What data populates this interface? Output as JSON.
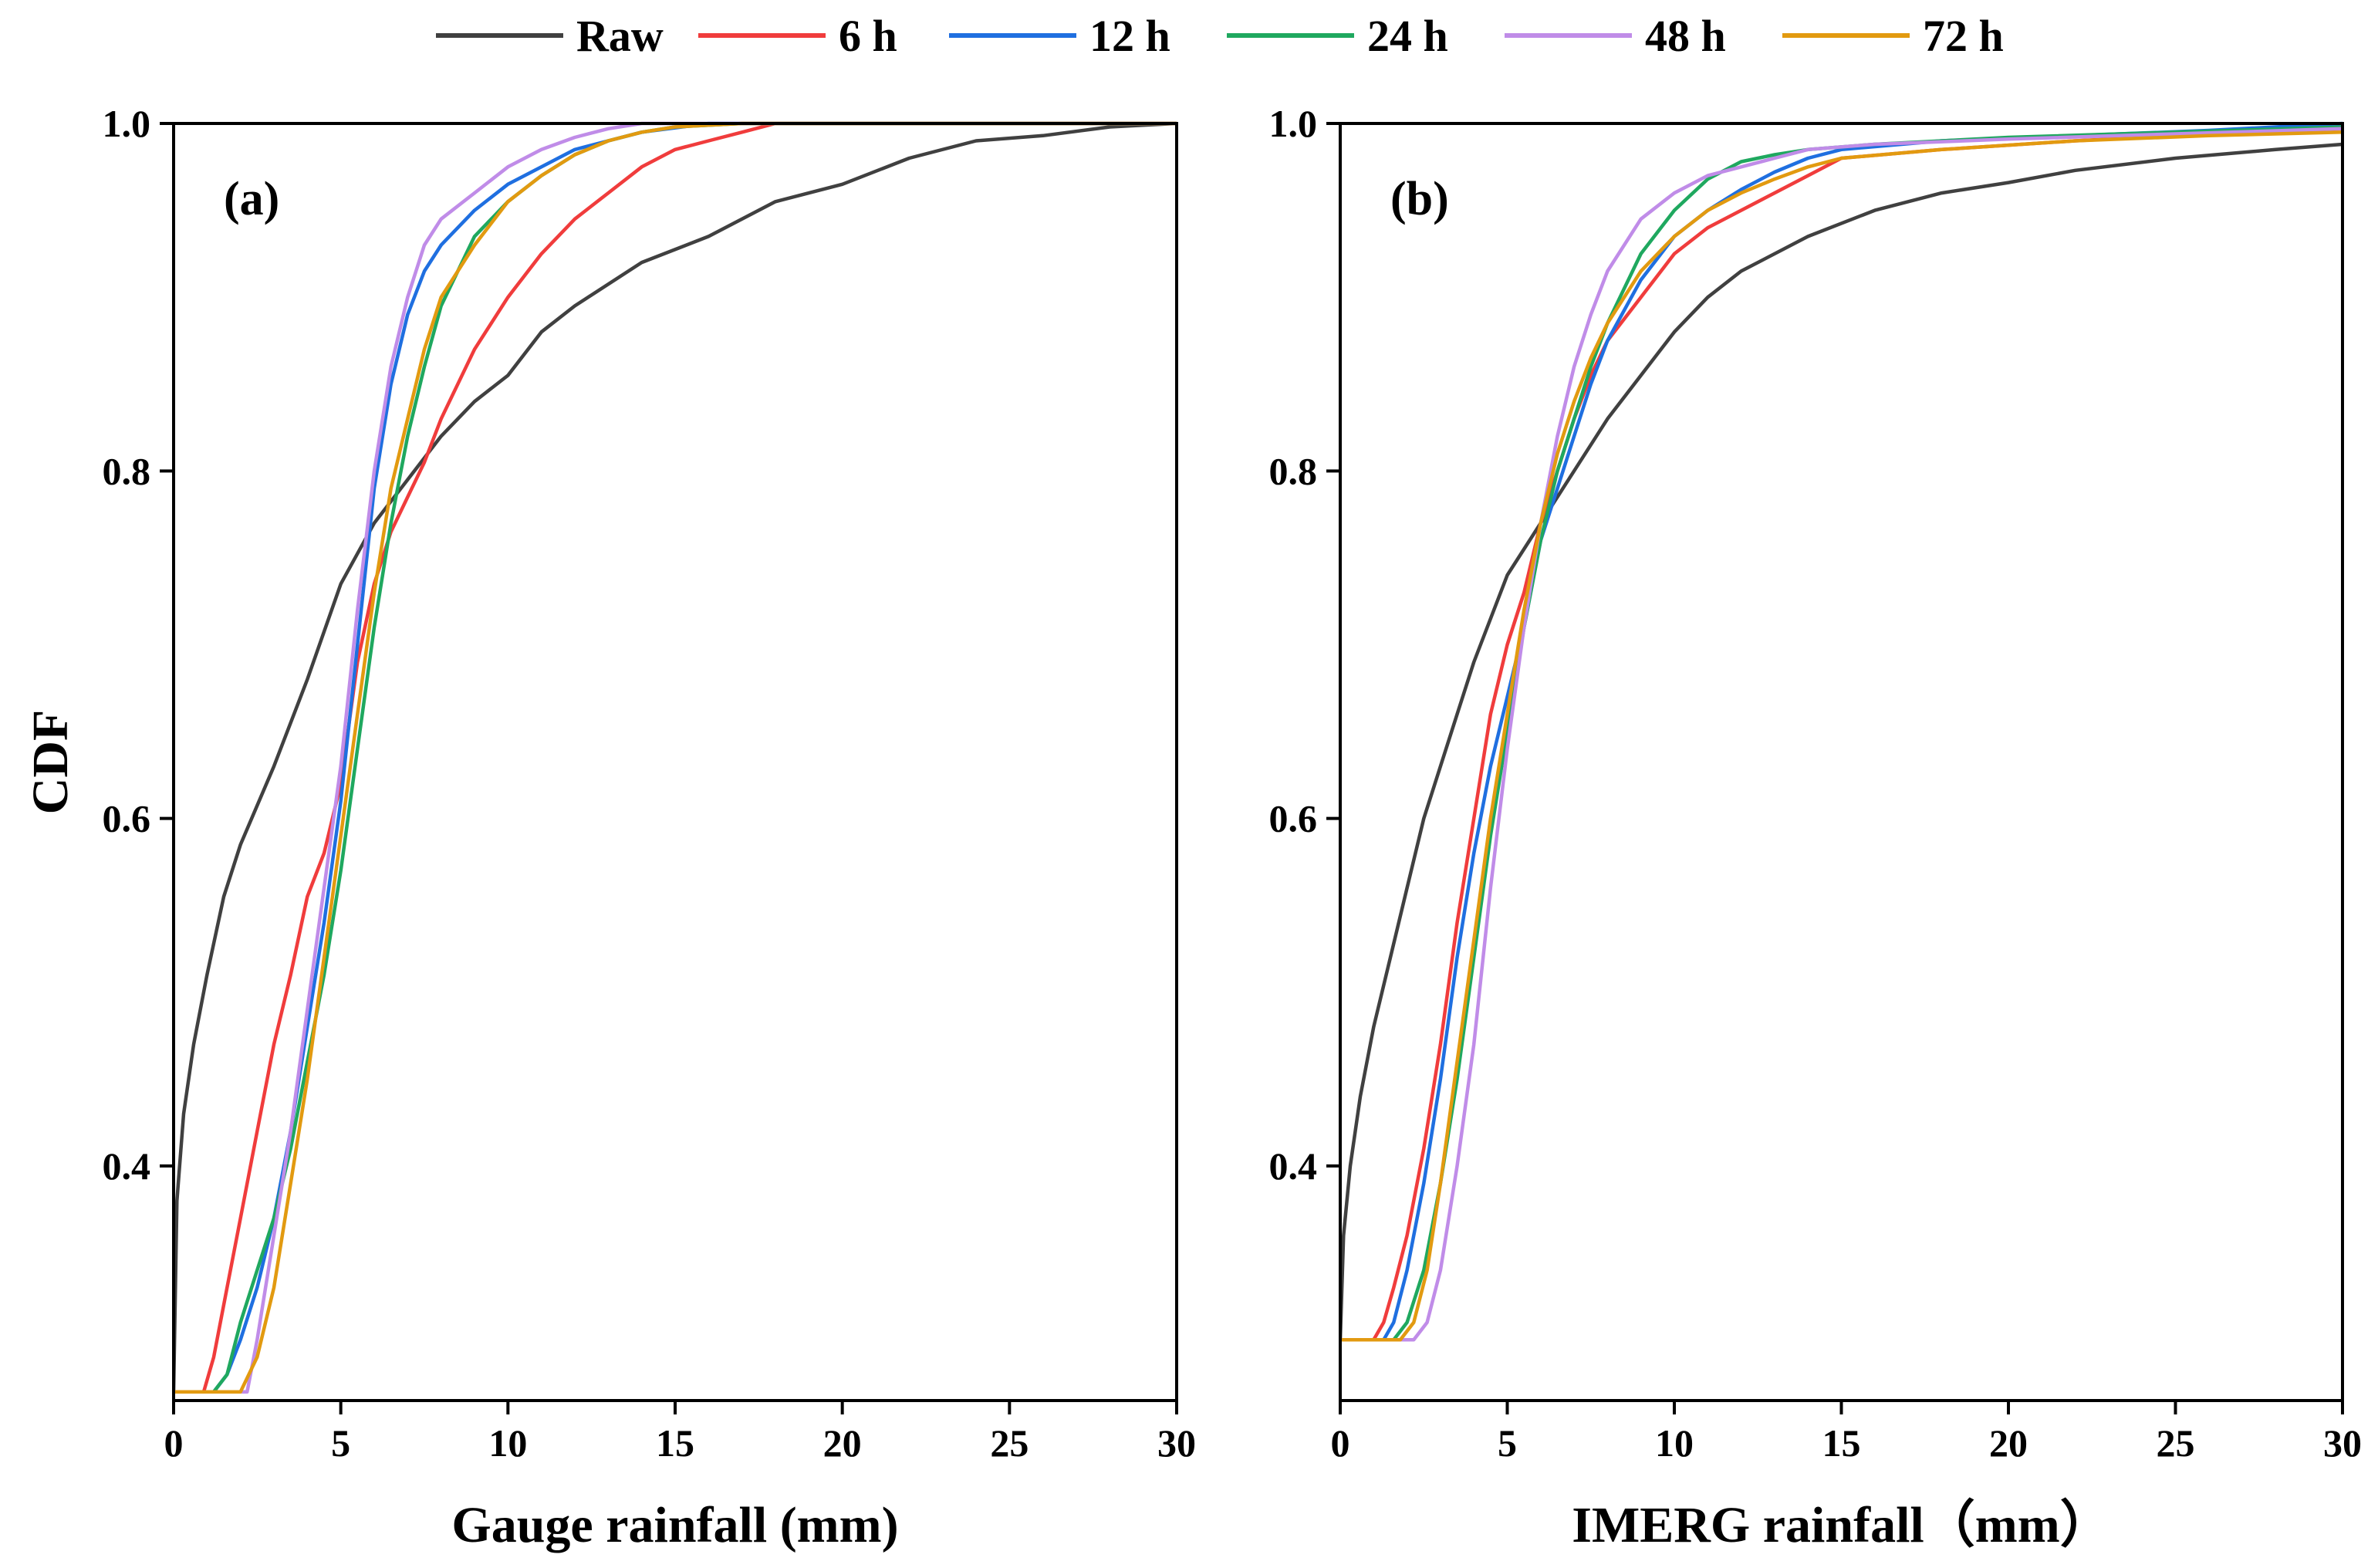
{
  "legend": {
    "items": [
      {
        "key": "raw",
        "label": "Raw",
        "color": "#404040"
      },
      {
        "key": "h6",
        "label": "6 h",
        "color": "#f03c3c"
      },
      {
        "key": "h12",
        "label": "12 h",
        "color": "#1f6fe0"
      },
      {
        "key": "h24",
        "label": "24 h",
        "color": "#1fa85f"
      },
      {
        "key": "h48",
        "label": "48 h",
        "color": "#c08ce8"
      },
      {
        "key": "h72",
        "label": "72 h",
        "color": "#e29a10"
      }
    ]
  },
  "chart_data": [
    {
      "type": "line",
      "panel_label": "(a)",
      "title": "",
      "xlabel": "Gauge rainfall (mm)",
      "ylabel": "CDF",
      "xlim": [
        0,
        30
      ],
      "ylim": [
        0.265,
        1.0
      ],
      "xticks": [
        0,
        5,
        10,
        15,
        20,
        25,
        30
      ],
      "xtick_labels": [
        "0",
        "5",
        "10",
        "15",
        "20",
        "25",
        "30"
      ],
      "yticks": [
        0.4,
        0.6,
        0.8,
        1.0
      ],
      "ytick_labels": [
        "0.4",
        "0.6",
        "0.8",
        "1.0"
      ],
      "series": [
        {
          "name": "Raw",
          "x": [
            0,
            0.1,
            0.3,
            0.6,
            1.0,
            1.5,
            2.0,
            3.0,
            4.0,
            5.0,
            6.0,
            7.0,
            8.0,
            9.0,
            10.0,
            11.0,
            12.0,
            14.0,
            16.0,
            18.0,
            20.0,
            22.0,
            24.0,
            26.0,
            28.0,
            30.0
          ],
          "y": [
            0.27,
            0.38,
            0.43,
            0.47,
            0.51,
            0.555,
            0.585,
            0.63,
            0.68,
            0.735,
            0.77,
            0.795,
            0.82,
            0.84,
            0.855,
            0.88,
            0.895,
            0.92,
            0.935,
            0.955,
            0.965,
            0.98,
            0.99,
            0.993,
            0.998,
            1.0
          ]
        },
        {
          "name": "6 h",
          "x": [
            0,
            0.9,
            1.2,
            1.6,
            2.0,
            2.5,
            3.0,
            3.5,
            4.0,
            4.5,
            5.0,
            5.5,
            6.0,
            6.5,
            7.0,
            7.5,
            8.0,
            8.5,
            9.0,
            10.0,
            11.0,
            12.0,
            13.0,
            14.0,
            15.0,
            16.0,
            17.0,
            18.0,
            30.0
          ],
          "y": [
            0.27,
            0.27,
            0.29,
            0.33,
            0.37,
            0.42,
            0.47,
            0.51,
            0.555,
            0.58,
            0.62,
            0.69,
            0.735,
            0.765,
            0.785,
            0.805,
            0.83,
            0.85,
            0.87,
            0.9,
            0.925,
            0.945,
            0.96,
            0.975,
            0.985,
            0.99,
            0.995,
            1.0,
            1.0
          ]
        },
        {
          "name": "12 h",
          "x": [
            0,
            1.2,
            1.6,
            2.0,
            2.5,
            3.0,
            3.5,
            4.0,
            4.5,
            5.0,
            5.5,
            6.0,
            6.5,
            7.0,
            7.5,
            8.0,
            9.0,
            10.0,
            11.0,
            12.0,
            13.0,
            14.0,
            16.0,
            30.0
          ],
          "y": [
            0.27,
            0.27,
            0.28,
            0.3,
            0.33,
            0.37,
            0.42,
            0.48,
            0.54,
            0.61,
            0.7,
            0.79,
            0.85,
            0.89,
            0.915,
            0.93,
            0.95,
            0.965,
            0.975,
            0.985,
            0.99,
            0.995,
            1.0,
            1.0
          ]
        },
        {
          "name": "24 h",
          "x": [
            0,
            1.2,
            1.6,
            2.0,
            2.5,
            3.0,
            3.5,
            4.0,
            4.5,
            5.0,
            5.5,
            6.0,
            6.5,
            7.0,
            7.5,
            8.0,
            9.0,
            10.0,
            11.0,
            12.0,
            13.0,
            14.0,
            15.0,
            17.0,
            30.0
          ],
          "y": [
            0.27,
            0.27,
            0.28,
            0.31,
            0.34,
            0.37,
            0.41,
            0.46,
            0.51,
            0.57,
            0.64,
            0.71,
            0.77,
            0.82,
            0.86,
            0.895,
            0.935,
            0.955,
            0.97,
            0.982,
            0.99,
            0.995,
            0.998,
            1.0,
            1.0
          ]
        },
        {
          "name": "48 h",
          "x": [
            0,
            2.2,
            2.5,
            3.0,
            3.5,
            4.0,
            4.5,
            5.0,
            5.5,
            6.0,
            6.5,
            7.0,
            7.5,
            8.0,
            9.0,
            10.0,
            11.0,
            12.0,
            13.0,
            14.0,
            30.0
          ],
          "y": [
            0.27,
            0.27,
            0.3,
            0.36,
            0.42,
            0.49,
            0.56,
            0.63,
            0.72,
            0.8,
            0.86,
            0.9,
            0.93,
            0.945,
            0.96,
            0.975,
            0.985,
            0.992,
            0.997,
            1.0,
            1.0
          ]
        },
        {
          "name": "72 h",
          "x": [
            0,
            2.0,
            2.5,
            3.0,
            3.5,
            4.0,
            4.5,
            5.0,
            5.5,
            6.0,
            6.5,
            7.0,
            7.5,
            8.0,
            9.0,
            10.0,
            11.0,
            12.0,
            13.0,
            14.0,
            15.0,
            17.0,
            30.0
          ],
          "y": [
            0.27,
            0.27,
            0.29,
            0.33,
            0.39,
            0.45,
            0.52,
            0.59,
            0.66,
            0.73,
            0.79,
            0.83,
            0.87,
            0.9,
            0.93,
            0.955,
            0.97,
            0.982,
            0.99,
            0.995,
            0.998,
            1.0,
            1.0
          ]
        }
      ]
    },
    {
      "type": "line",
      "panel_label": "(b)",
      "title": "",
      "xlabel": "IMERG rainfall（mm）",
      "ylabel": "",
      "xlim": [
        0,
        30
      ],
      "ylim": [
        0.265,
        1.0
      ],
      "xticks": [
        0,
        5,
        10,
        15,
        20,
        25,
        30
      ],
      "xtick_labels": [
        "0",
        "5",
        "10",
        "15",
        "20",
        "25",
        "30"
      ],
      "yticks": [
        0.4,
        0.6,
        0.8,
        1.0
      ],
      "ytick_labels": [
        "0.4",
        "0.6",
        "0.8",
        "1.0"
      ],
      "series": [
        {
          "name": "Raw",
          "x": [
            0,
            0.1,
            0.3,
            0.6,
            1.0,
            1.5,
            2.0,
            2.5,
            3.0,
            3.5,
            4.0,
            5.0,
            6.0,
            7.0,
            8.0,
            9.0,
            10.0,
            11.0,
            12.0,
            14.0,
            16.0,
            18.0,
            20.0,
            22.0,
            25.0,
            28.0,
            30.0
          ],
          "y": [
            0.3,
            0.36,
            0.4,
            0.44,
            0.48,
            0.52,
            0.56,
            0.6,
            0.63,
            0.66,
            0.69,
            0.74,
            0.77,
            0.8,
            0.83,
            0.855,
            0.88,
            0.9,
            0.915,
            0.935,
            0.95,
            0.96,
            0.966,
            0.973,
            0.98,
            0.985,
            0.988
          ]
        },
        {
          "name": "6 h",
          "x": [
            0,
            1.0,
            1.3,
            1.6,
            2.0,
            2.5,
            3.0,
            3.5,
            4.0,
            4.5,
            5.0,
            5.5,
            6.0,
            6.5,
            7.0,
            7.5,
            8.0,
            9.0,
            10.0,
            11.0,
            12.0,
            13.0,
            14.0,
            15.0,
            18.0,
            22.0,
            25.0,
            30.0
          ],
          "y": [
            0.3,
            0.3,
            0.31,
            0.33,
            0.36,
            0.41,
            0.47,
            0.54,
            0.6,
            0.66,
            0.7,
            0.73,
            0.77,
            0.8,
            0.83,
            0.855,
            0.875,
            0.9,
            0.925,
            0.94,
            0.95,
            0.96,
            0.97,
            0.98,
            0.985,
            0.99,
            0.993,
            0.997
          ]
        },
        {
          "name": "12 h",
          "x": [
            0,
            1.3,
            1.6,
            2.0,
            2.5,
            3.0,
            3.5,
            4.0,
            4.5,
            5.0,
            5.5,
            6.0,
            6.5,
            7.0,
            7.5,
            8.0,
            9.0,
            10.0,
            11.0,
            12.0,
            13.0,
            14.0,
            15.0,
            18.0,
            22.0,
            26.0,
            30.0
          ],
          "y": [
            0.3,
            0.3,
            0.31,
            0.34,
            0.39,
            0.45,
            0.52,
            0.58,
            0.63,
            0.67,
            0.71,
            0.76,
            0.79,
            0.82,
            0.85,
            0.875,
            0.91,
            0.935,
            0.95,
            0.962,
            0.972,
            0.98,
            0.985,
            0.99,
            0.993,
            0.996,
            1.0
          ]
        },
        {
          "name": "24 h",
          "x": [
            0,
            1.6,
            2.0,
            2.5,
            3.0,
            3.5,
            4.0,
            4.5,
            5.0,
            5.5,
            6.0,
            6.5,
            7.0,
            7.5,
            8.0,
            9.0,
            10.0,
            11.0,
            12.0,
            13.0,
            14.0,
            16.0,
            20.0,
            25.0,
            30.0
          ],
          "y": [
            0.3,
            0.3,
            0.31,
            0.34,
            0.39,
            0.45,
            0.52,
            0.59,
            0.65,
            0.71,
            0.76,
            0.8,
            0.83,
            0.86,
            0.885,
            0.925,
            0.95,
            0.968,
            0.978,
            0.982,
            0.985,
            0.988,
            0.992,
            0.995,
            0.998
          ]
        },
        {
          "name": "48 h",
          "x": [
            0,
            2.2,
            2.6,
            3.0,
            3.5,
            4.0,
            4.5,
            5.0,
            5.5,
            6.0,
            6.5,
            7.0,
            7.5,
            8.0,
            9.0,
            10.0,
            11.0,
            12.0,
            13.0,
            14.0,
            16.0,
            20.0,
            25.0,
            30.0
          ],
          "y": [
            0.3,
            0.3,
            0.31,
            0.34,
            0.4,
            0.47,
            0.56,
            0.64,
            0.71,
            0.77,
            0.82,
            0.86,
            0.89,
            0.915,
            0.945,
            0.96,
            0.97,
            0.975,
            0.98,
            0.985,
            0.988,
            0.991,
            0.994,
            0.997
          ]
        },
        {
          "name": "72 h",
          "x": [
            0,
            1.8,
            2.2,
            2.6,
            3.0,
            3.5,
            4.0,
            4.5,
            5.0,
            5.5,
            6.0,
            6.5,
            7.0,
            7.5,
            8.0,
            9.0,
            10.0,
            11.0,
            12.0,
            13.0,
            14.0,
            15.0,
            18.0,
            22.0,
            26.0,
            30.0
          ],
          "y": [
            0.3,
            0.3,
            0.31,
            0.34,
            0.39,
            0.46,
            0.53,
            0.6,
            0.66,
            0.72,
            0.77,
            0.81,
            0.84,
            0.865,
            0.885,
            0.915,
            0.935,
            0.95,
            0.96,
            0.968,
            0.975,
            0.98,
            0.985,
            0.99,
            0.993,
            0.995
          ]
        }
      ]
    }
  ]
}
